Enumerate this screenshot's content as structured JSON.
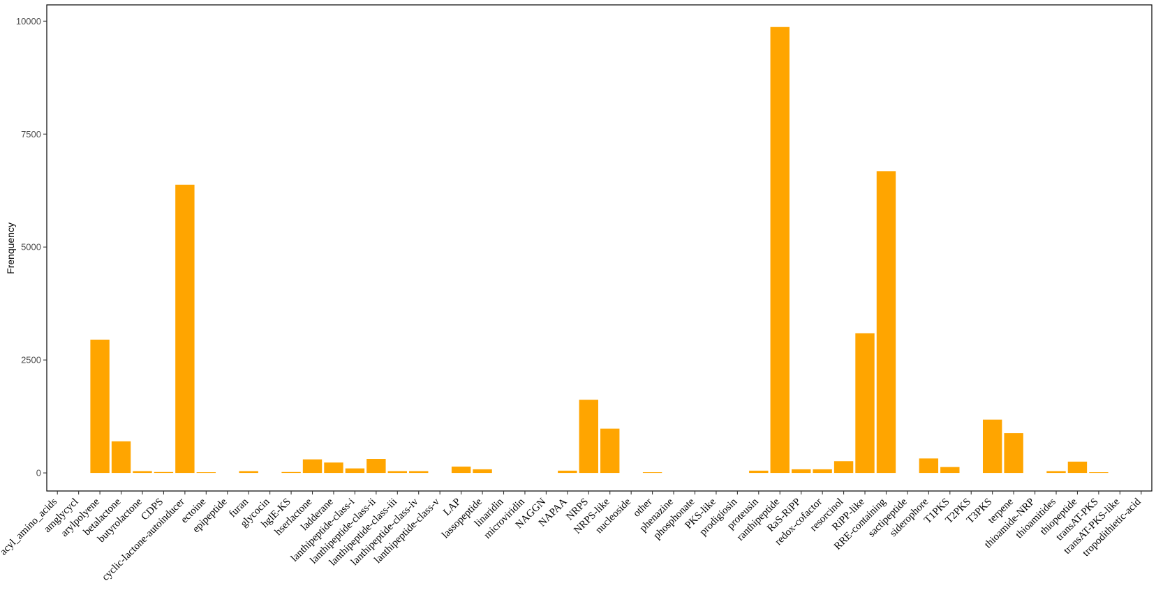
{
  "chart_data": {
    "type": "bar",
    "title": "",
    "xlabel": "",
    "ylabel": "Frenquency",
    "ylim": [
      -400,
      10360
    ],
    "yticks": [
      0,
      2500,
      5000,
      7500,
      10000
    ],
    "grid": false,
    "bar_color": "#FFA500",
    "categories": [
      "acyl_amino_acids",
      "amglycycl",
      "arylpolyene",
      "betalactone",
      "butyrolactone",
      "CDPS",
      "cyclic-lactone-autoinducer",
      "ectoine",
      "epipeptide",
      "furan",
      "glycocin",
      "hglE-KS",
      "hserlactone",
      "ladderane",
      "lanthipeptide-class-i",
      "lanthipeptide-class-ii",
      "lanthipeptide-class-iii",
      "lanthipeptide-class-iv",
      "lanthipeptide-class-v",
      "LAP",
      "lassopeptide",
      "linaridin",
      "microviridin",
      "NAGGN",
      "NAPAA",
      "NRPS",
      "NRPS-like",
      "nucleoside",
      "other",
      "phenazine",
      "phosphonate",
      "PKS-like",
      "prodigiosin",
      "proteusin",
      "ranthipeptide",
      "RaS-RiPP",
      "redox-cofactor",
      "resorcinol",
      "RiPP-like",
      "RRE-containing",
      "sactipeptide",
      "siderophore",
      "T1PKS",
      "T2PKS",
      "T3PKS",
      "terpene",
      "thioamide-NRP",
      "thioamitides",
      "thiopeptide",
      "transAT-PKS",
      "transAT-PKS-like",
      "tropodithietic-acid"
    ],
    "values": [
      0,
      0,
      2950,
      700,
      40,
      20,
      6380,
      15,
      0,
      40,
      0,
      20,
      300,
      230,
      100,
      310,
      40,
      40,
      0,
      140,
      80,
      0,
      0,
      0,
      50,
      1620,
      980,
      0,
      15,
      0,
      0,
      0,
      0,
      50,
      9870,
      80,
      80,
      260,
      3090,
      6680,
      0,
      320,
      130,
      0,
      1180,
      880,
      0,
      40,
      250,
      15,
      0,
      0
    ]
  }
}
